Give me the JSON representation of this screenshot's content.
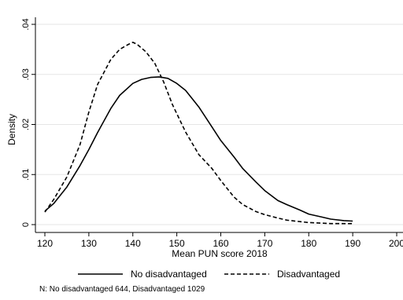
{
  "chart_data": {
    "type": "line",
    "title": "",
    "xlabel": "Mean PUN score 2018",
    "ylabel": "Density",
    "xlim": [
      120,
      200
    ],
    "ylim": [
      0,
      0.04
    ],
    "x_ticks": [
      "120",
      "130",
      "140",
      "150",
      "160",
      "170",
      "180",
      "190",
      "200"
    ],
    "y_ticks": [
      "0",
      ".01",
      ".02",
      ".03",
      ".04"
    ],
    "grid": true,
    "legend_position": "bottom",
    "series": [
      {
        "name": "No disadvantaged",
        "style": "solid",
        "color": "#000000",
        "x": [
          120,
          122,
          125,
          128,
          130,
          132,
          135,
          137,
          140,
          142,
          144,
          146,
          148,
          150,
          152,
          155,
          158,
          160,
          163,
          165,
          168,
          170,
          173,
          175,
          178,
          180,
          183,
          185,
          188,
          190
        ],
        "y": [
          0.0027,
          0.0042,
          0.0075,
          0.0118,
          0.015,
          0.0184,
          0.0232,
          0.0258,
          0.0282,
          0.029,
          0.0294,
          0.0295,
          0.0292,
          0.0282,
          0.0268,
          0.0235,
          0.0195,
          0.0168,
          0.0135,
          0.0112,
          0.0085,
          0.0068,
          0.0048,
          0.004,
          0.0029,
          0.0021,
          0.0015,
          0.0011,
          0.0008,
          0.0007
        ]
      },
      {
        "name": "Disadvantaged",
        "style": "dashed",
        "color": "#000000",
        "x": [
          120,
          122,
          125,
          128,
          130,
          132,
          135,
          137,
          139,
          140,
          141,
          143,
          145,
          147,
          149,
          152,
          155,
          158,
          160,
          163,
          165,
          168,
          170,
          173,
          175,
          178,
          180,
          183,
          185,
          188,
          190
        ],
        "y": [
          0.0025,
          0.005,
          0.0095,
          0.016,
          0.0225,
          0.028,
          0.033,
          0.035,
          0.036,
          0.0364,
          0.036,
          0.0345,
          0.0322,
          0.0285,
          0.024,
          0.0185,
          0.014,
          0.0112,
          0.0088,
          0.0055,
          0.004,
          0.0026,
          0.002,
          0.0013,
          0.0009,
          0.0006,
          0.0004,
          0.0003,
          0.0002,
          0.0002,
          0.0002
        ]
      }
    ],
    "note": "N: No disadvantaged 644, Disadvantaged 1029"
  }
}
